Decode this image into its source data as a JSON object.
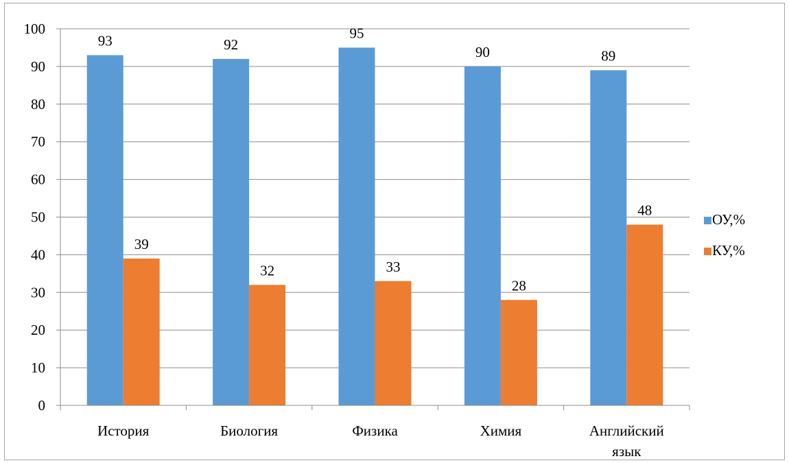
{
  "chart_data": {
    "type": "bar",
    "categories": [
      [
        "История"
      ],
      [
        "Биология"
      ],
      [
        "Физика"
      ],
      [
        "Химия"
      ],
      [
        "Английский",
        "язык"
      ]
    ],
    "series": [
      {
        "name": "ОУ,%",
        "color": "#5b9bd5",
        "values": [
          93,
          92,
          95,
          90,
          89
        ]
      },
      {
        "name": "КУ,%",
        "color": "#ed7d31",
        "values": [
          39,
          32,
          33,
          28,
          48
        ]
      }
    ],
    "yticks": [
      0,
      10,
      20,
      30,
      40,
      50,
      60,
      70,
      80,
      90,
      100
    ],
    "ylim": [
      0,
      100
    ],
    "grid": true,
    "legend": "right",
    "data_labels": true
  }
}
